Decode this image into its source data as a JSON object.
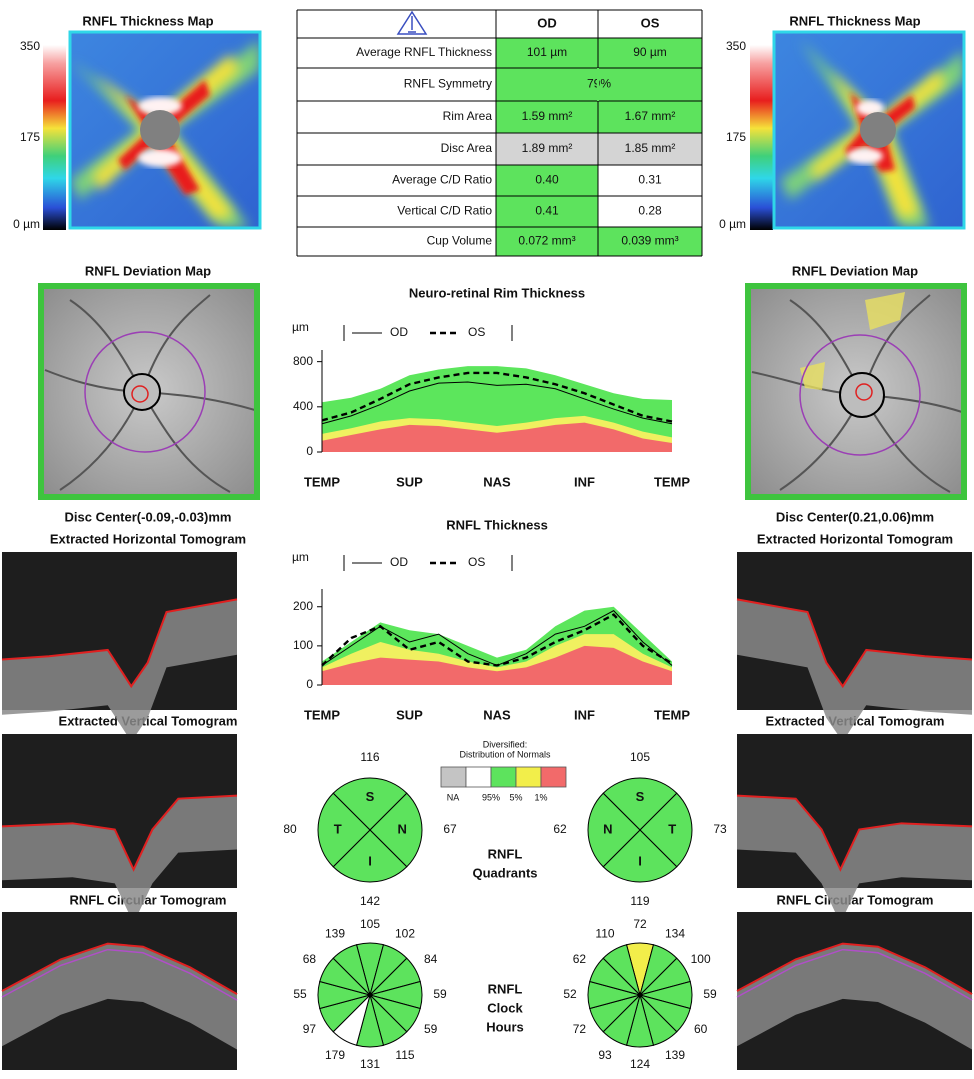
{
  "od": {
    "thickness_map_title": "RNFL Thickness Map",
    "scale": [
      "350",
      "175",
      "0 µm"
    ],
    "deviation_map_title": "RNFL Deviation Map",
    "disc_center": "Disc Center(-0.09,-0.03)mm",
    "horizontal_tomogram_title": "Extracted Horizontal Tomogram",
    "vertical_tomogram_title": "Extracted Vertical Tomogram",
    "circular_tomogram_title": "RNFL Circular Tomogram"
  },
  "os": {
    "thickness_map_title": "RNFL Thickness Map",
    "scale": [
      "350",
      "175",
      "0 µm"
    ],
    "deviation_map_title": "RNFL Deviation Map",
    "disc_center": "Disc Center(0.21,0.06)mm",
    "horizontal_tomogram_title": "Extracted Horizontal Tomogram",
    "vertical_tomogram_title": "Extracted Vertical Tomogram",
    "circular_tomogram_title": "RNFL Circular Tomogram"
  },
  "table": {
    "header": [
      "OD",
      "OS"
    ],
    "rows": [
      [
        "Average RNFL Thickness",
        "101 µm",
        "90 µm"
      ],
      [
        "RNFL Symmetry",
        "79%"
      ],
      [
        "Rim Area",
        "1.59 mm²",
        "1.67 mm²"
      ],
      [
        "Disc Area",
        "1.89 mm²",
        "1.85 mm²"
      ],
      [
        "Average C/D Ratio",
        "0.40",
        "0.31"
      ],
      [
        "Vertical C/D Ratio",
        "0.41",
        "0.28"
      ],
      [
        "Cup Volume",
        "0.072 mm³",
        "0.039 mm³"
      ]
    ],
    "cell_colors": [
      [
        "#5de35d",
        "#5de35d"
      ],
      [
        "#5de35d"
      ],
      [
        "#5de35d",
        "#5de35d"
      ],
      [
        "#d4d4d4",
        "#d4d4d4"
      ],
      [
        "#5de35d",
        "#ffffff"
      ],
      [
        "#5de35d",
        "#ffffff"
      ],
      [
        "#5de35d",
        "#5de35d"
      ]
    ]
  },
  "rim_chart": {
    "type": "line",
    "title": "Neuro-retinal Rim Thickness",
    "unit": "µm",
    "categories": [
      "TEMP",
      null,
      null,
      "SUP",
      null,
      null,
      "NAS",
      null,
      null,
      "INF",
      null,
      null,
      "TEMP"
    ],
    "ylim": [
      0,
      850
    ],
    "yticks": [
      0,
      400,
      800
    ],
    "bands": [
      {
        "color": "#5ce65c",
        "values": [
          440,
          480,
          560,
          680,
          730,
          760,
          760,
          740,
          680,
          600,
          520,
          470,
          460
        ]
      },
      {
        "color": "#f0f060",
        "values": [
          160,
          210,
          270,
          300,
          290,
          260,
          230,
          260,
          300,
          320,
          260,
          180,
          130
        ]
      },
      {
        "color": "#f26a6a",
        "values": [
          100,
          150,
          200,
          240,
          230,
          200,
          170,
          200,
          240,
          260,
          200,
          120,
          80
        ]
      }
    ],
    "series": [
      {
        "name": "OD",
        "color": "#000000",
        "dash": false,
        "values": [
          250,
          320,
          420,
          540,
          610,
          620,
          590,
          600,
          560,
          470,
          380,
          300,
          250
        ]
      },
      {
        "name": "OS",
        "color": "#000000",
        "dash": true,
        "values": [
          280,
          350,
          470,
          600,
          660,
          700,
          700,
          660,
          600,
          520,
          420,
          320,
          270
        ]
      }
    ]
  },
  "rnfl_chart": {
    "type": "line",
    "title": "RNFL Thickness",
    "unit": "µm",
    "categories": [
      "TEMP",
      null,
      null,
      "SUP",
      null,
      null,
      "NAS",
      null,
      null,
      "INF",
      null,
      null,
      "TEMP"
    ],
    "ylim": [
      0,
      230
    ],
    "yticks": [
      0,
      100,
      200
    ],
    "bands": [
      {
        "color": "#5ce65c",
        "values": [
          60,
          110,
          160,
          140,
          130,
          100,
          70,
          90,
          150,
          190,
          200,
          130,
          60
        ]
      },
      {
        "color": "#f0f060",
        "values": [
          45,
          80,
          110,
          90,
          80,
          60,
          45,
          60,
          100,
          130,
          130,
          80,
          45
        ]
      },
      {
        "color": "#f26a6a",
        "values": [
          35,
          55,
          70,
          65,
          60,
          45,
          35,
          45,
          70,
          100,
          95,
          60,
          35
        ]
      }
    ],
    "series": [
      {
        "name": "OD",
        "color": "#000000",
        "dash": false,
        "values": [
          50,
          100,
          150,
          110,
          130,
          80,
          50,
          80,
          130,
          150,
          190,
          110,
          50
        ]
      },
      {
        "name": "OS",
        "color": "#000000",
        "dash": true,
        "values": [
          50,
          120,
          150,
          90,
          110,
          60,
          50,
          70,
          110,
          140,
          180,
          100,
          55
        ]
      }
    ]
  },
  "legend": {
    "title_lines": [
      "Diversified:",
      "Distribution of Normals"
    ],
    "colors": [
      "#c4c4c4",
      "#ffffff",
      "#5de35d",
      "#f2ee4a",
      "#f26a6a"
    ],
    "labels": [
      "NA",
      "95%",
      "5%",
      "1%"
    ]
  },
  "quadrants": {
    "title_lines": [
      "RNFL",
      "Quadrants"
    ],
    "od": {
      "letters": [
        "S",
        "N",
        "I",
        "T"
      ],
      "values": [
        116,
        67,
        142,
        80
      ],
      "colors": [
        "#5de35d",
        "#5de35d",
        "#5de35d",
        "#5de35d"
      ]
    },
    "os": {
      "letters": [
        "S",
        "T",
        "I",
        "N"
      ],
      "values": [
        105,
        73,
        119,
        62
      ],
      "colors": [
        "#5de35d",
        "#5de35d",
        "#5de35d",
        "#5de35d"
      ]
    }
  },
  "clock_hours": {
    "title_lines": [
      "RNFL",
      "Clock",
      "Hours"
    ],
    "od": {
      "values": [
        105,
        102,
        84,
        59,
        59,
        115,
        131,
        179,
        97,
        55,
        68,
        139
      ],
      "colors": [
        "#5de35d",
        "#5de35d",
        "#5de35d",
        "#5de35d",
        "#5de35d",
        "#5de35d",
        "#5de35d",
        "#ffffff",
        "#5de35d",
        "#5de35d",
        "#5de35d",
        "#5de35d"
      ]
    },
    "os": {
      "values": [
        72,
        134,
        100,
        59,
        60,
        139,
        124,
        93,
        72,
        52,
        62,
        110
      ],
      "colors": [
        "#f2ee4a",
        "#5de35d",
        "#5de35d",
        "#5de35d",
        "#5de35d",
        "#5de35d",
        "#5de35d",
        "#5de35d",
        "#5de35d",
        "#5de35d",
        "#5de35d",
        "#5de35d"
      ]
    }
  }
}
